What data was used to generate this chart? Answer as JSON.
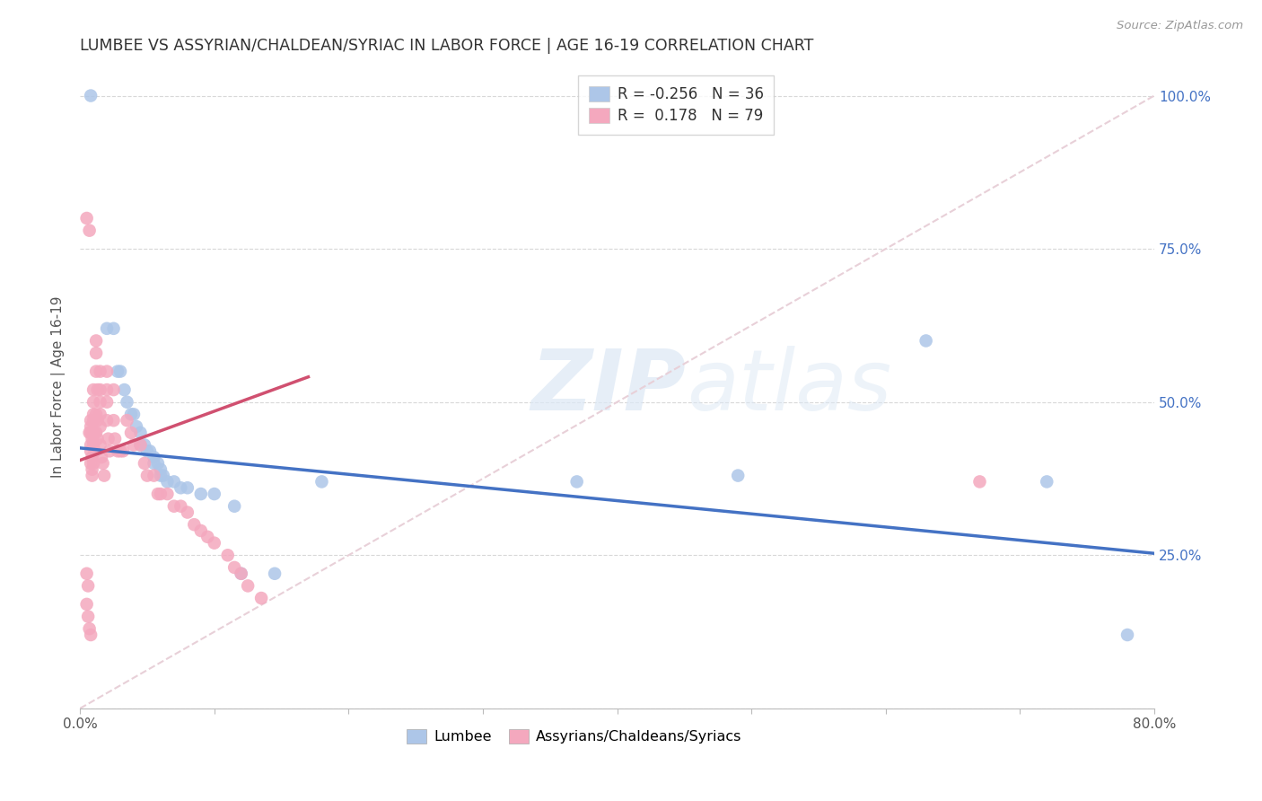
{
  "title": "LUMBEE VS ASSYRIAN/CHALDEAN/SYRIAC IN LABOR FORCE | AGE 16-19 CORRELATION CHART",
  "source": "Source: ZipAtlas.com",
  "ylabel": "In Labor Force | Age 16-19",
  "watermark_zip": "ZIP",
  "watermark_atlas": "atlas",
  "xlim": [
    0.0,
    0.8
  ],
  "ylim": [
    0.0,
    1.05
  ],
  "x_tick_positions": [
    0.0,
    0.1,
    0.2,
    0.3,
    0.4,
    0.5,
    0.6,
    0.7,
    0.8
  ],
  "x_tick_labels": [
    "0.0%",
    "",
    "",
    "",
    "",
    "",
    "",
    "",
    "80.0%"
  ],
  "y_tick_positions": [
    0.0,
    0.25,
    0.5,
    0.75,
    1.0
  ],
  "y_tick_labels_right": [
    "",
    "25.0%",
    "50.0%",
    "75.0%",
    "100.0%"
  ],
  "legend_R_lumbee": "-0.256",
  "legend_N_lumbee": "36",
  "legend_R_assyrian": " 0.178",
  "legend_N_assyrian": "79",
  "lumbee_color": "#adc6e8",
  "assyrian_color": "#f4a8be",
  "lumbee_line_color": "#4472c4",
  "assyrian_line_color": "#d05070",
  "ref_line_color": "#e8d0d8",
  "grid_color": "#d8d8d8",
  "title_color": "#333333",
  "right_tick_color": "#4472c4",
  "lumbee_scatter": [
    [
      0.008,
      1.0
    ],
    [
      0.02,
      0.62
    ],
    [
      0.025,
      0.62
    ],
    [
      0.028,
      0.55
    ],
    [
      0.03,
      0.55
    ],
    [
      0.033,
      0.52
    ],
    [
      0.035,
      0.5
    ],
    [
      0.038,
      0.48
    ],
    [
      0.04,
      0.48
    ],
    [
      0.042,
      0.46
    ],
    [
      0.045,
      0.45
    ],
    [
      0.045,
      0.43
    ],
    [
      0.048,
      0.43
    ],
    [
      0.05,
      0.42
    ],
    [
      0.052,
      0.42
    ],
    [
      0.055,
      0.41
    ],
    [
      0.055,
      0.4
    ],
    [
      0.058,
      0.4
    ],
    [
      0.06,
      0.39
    ],
    [
      0.06,
      0.38
    ],
    [
      0.062,
      0.38
    ],
    [
      0.065,
      0.37
    ],
    [
      0.07,
      0.37
    ],
    [
      0.075,
      0.36
    ],
    [
      0.08,
      0.36
    ],
    [
      0.09,
      0.35
    ],
    [
      0.1,
      0.35
    ],
    [
      0.115,
      0.33
    ],
    [
      0.12,
      0.22
    ],
    [
      0.145,
      0.22
    ],
    [
      0.18,
      0.37
    ],
    [
      0.37,
      0.37
    ],
    [
      0.49,
      0.38
    ],
    [
      0.63,
      0.6
    ],
    [
      0.72,
      0.37
    ],
    [
      0.78,
      0.12
    ]
  ],
  "assyrian_scatter": [
    [
      0.005,
      0.8
    ],
    [
      0.007,
      0.78
    ],
    [
      0.005,
      0.22
    ],
    [
      0.006,
      0.2
    ],
    [
      0.005,
      0.17
    ],
    [
      0.006,
      0.15
    ],
    [
      0.007,
      0.13
    ],
    [
      0.008,
      0.12
    ],
    [
      0.007,
      0.45
    ],
    [
      0.008,
      0.47
    ],
    [
      0.008,
      0.46
    ],
    [
      0.008,
      0.45
    ],
    [
      0.009,
      0.44
    ],
    [
      0.008,
      0.43
    ],
    [
      0.008,
      0.42
    ],
    [
      0.009,
      0.41
    ],
    [
      0.008,
      0.4
    ],
    [
      0.009,
      0.39
    ],
    [
      0.009,
      0.38
    ],
    [
      0.01,
      0.52
    ],
    [
      0.01,
      0.5
    ],
    [
      0.01,
      0.48
    ],
    [
      0.01,
      0.47
    ],
    [
      0.01,
      0.45
    ],
    [
      0.01,
      0.43
    ],
    [
      0.011,
      0.42
    ],
    [
      0.01,
      0.4
    ],
    [
      0.012,
      0.6
    ],
    [
      0.012,
      0.58
    ],
    [
      0.012,
      0.55
    ],
    [
      0.013,
      0.52
    ],
    [
      0.012,
      0.48
    ],
    [
      0.013,
      0.47
    ],
    [
      0.012,
      0.45
    ],
    [
      0.013,
      0.44
    ],
    [
      0.015,
      0.55
    ],
    [
      0.015,
      0.52
    ],
    [
      0.015,
      0.5
    ],
    [
      0.015,
      0.48
    ],
    [
      0.015,
      0.46
    ],
    [
      0.015,
      0.43
    ],
    [
      0.016,
      0.41
    ],
    [
      0.017,
      0.4
    ],
    [
      0.018,
      0.38
    ],
    [
      0.02,
      0.55
    ],
    [
      0.02,
      0.52
    ],
    [
      0.02,
      0.5
    ],
    [
      0.02,
      0.47
    ],
    [
      0.021,
      0.44
    ],
    [
      0.022,
      0.42
    ],
    [
      0.025,
      0.52
    ],
    [
      0.025,
      0.47
    ],
    [
      0.026,
      0.44
    ],
    [
      0.028,
      0.42
    ],
    [
      0.03,
      0.42
    ],
    [
      0.032,
      0.42
    ],
    [
      0.035,
      0.47
    ],
    [
      0.038,
      0.45
    ],
    [
      0.04,
      0.43
    ],
    [
      0.045,
      0.43
    ],
    [
      0.048,
      0.4
    ],
    [
      0.05,
      0.38
    ],
    [
      0.055,
      0.38
    ],
    [
      0.058,
      0.35
    ],
    [
      0.06,
      0.35
    ],
    [
      0.065,
      0.35
    ],
    [
      0.07,
      0.33
    ],
    [
      0.075,
      0.33
    ],
    [
      0.08,
      0.32
    ],
    [
      0.085,
      0.3
    ],
    [
      0.09,
      0.29
    ],
    [
      0.095,
      0.28
    ],
    [
      0.1,
      0.27
    ],
    [
      0.11,
      0.25
    ],
    [
      0.115,
      0.23
    ],
    [
      0.12,
      0.22
    ],
    [
      0.125,
      0.2
    ],
    [
      0.135,
      0.18
    ],
    [
      0.67,
      0.37
    ]
  ]
}
